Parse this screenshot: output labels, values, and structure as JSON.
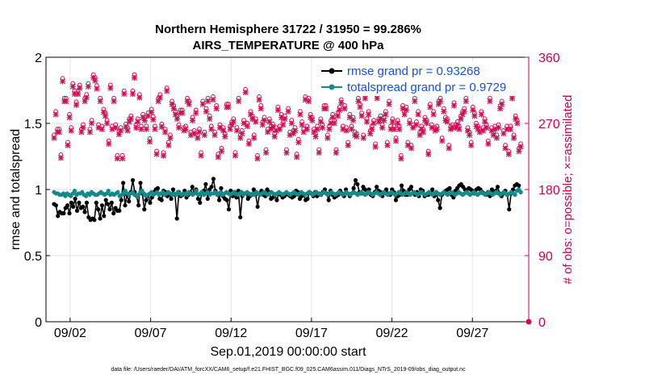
{
  "chart_data": {
    "type": "line",
    "title_line1": "Northern Hemisphere 31722 / 31950 = 99.286%",
    "title_line2": "AIRS_TEMPERATURE @ 400 hPa",
    "xlabel": "Sep.01,2019 00:00:00 start",
    "ylabel": "rmse and totalspread",
    "y2label": "# of obs: o=possible; ×=assimilated",
    "footnote": "data file: /Users/raeder/DAI/ATM_forcXX/CAM6_setup/f.e21.FHIST_BGC.f09_025.CAM6assim.011/Diags_NTrS_2019-09/obs_diag_output.nc",
    "xlim": [
      0.5,
      30.5
    ],
    "ylim": [
      0,
      2
    ],
    "y2lim": [
      0,
      360
    ],
    "xticks": [
      {
        "value": 2,
        "label": "09/02"
      },
      {
        "value": 7,
        "label": "09/07"
      },
      {
        "value": 12,
        "label": "09/12"
      },
      {
        "value": 17,
        "label": "09/17"
      },
      {
        "value": 22,
        "label": "09/22"
      },
      {
        "value": 27,
        "label": "09/27"
      }
    ],
    "yticks": [
      {
        "value": 0,
        "label": "0"
      },
      {
        "value": 0.5,
        "label": "0.5"
      },
      {
        "value": 1,
        "label": "1"
      },
      {
        "value": 1.5,
        "label": "1.5"
      },
      {
        "value": 2,
        "label": "2"
      }
    ],
    "y2ticks": [
      {
        "value": 0,
        "label": "0"
      },
      {
        "value": 90,
        "label": "90"
      },
      {
        "value": 180,
        "label": "180"
      },
      {
        "value": 270,
        "label": "270"
      },
      {
        "value": 360,
        "label": "360"
      }
    ],
    "grid": true,
    "legend_position": "top-right",
    "series": [
      {
        "name": "rmse grand pr = 0.93268",
        "color": "#000000",
        "axis": "left",
        "values": [
          0.89,
          0.88,
          0.8,
          0.83,
          0.82,
          0.82,
          0.86,
          0.88,
          0.82,
          0.9,
          0.87,
          0.93,
          0.84,
          0.9,
          0.86,
          0.87,
          0.83,
          0.9,
          0.79,
          0.77,
          0.78,
          0.77,
          0.9,
          0.85,
          0.78,
          0.88,
          0.8,
          0.92,
          0.89,
          0.85,
          0.9,
          0.82,
          0.86,
          0.84,
          0.84,
          0.92,
          1.05,
          0.88,
          0.96,
          0.91,
          0.98,
          1.07,
          0.98,
          0.95,
          0.88,
          1.05,
          0.97,
          0.85,
          0.92,
          0.96,
          0.9,
          0.94,
          0.98,
          1.0,
          1.01,
          0.93,
          0.92,
          0.99,
          0.98,
          0.95,
          0.97,
          0.93,
          1.0,
          0.96,
          0.78,
          0.98,
          0.95,
          0.96,
          0.99,
          0.94,
          0.96,
          0.98,
          1.02,
          0.97,
          1.0,
          0.93,
          0.9,
          0.98,
          0.99,
          1.04,
          0.93,
          1.0,
          1.02,
          1.08,
          0.99,
          0.97,
          0.92,
          1.01,
          0.95,
          0.93,
          0.92,
          0.85,
          0.99,
          0.95,
          0.98,
          0.94,
          0.99,
          0.79,
          0.95,
          0.97,
          0.97,
          0.93,
          0.95,
          0.96,
          1.0,
          0.96,
          0.87,
          0.97,
          0.99,
          0.96,
          0.95,
          1.0,
          0.98,
          0.93,
          0.94,
          0.96,
          0.92,
          0.97,
          0.96,
          0.94,
          0.95,
          0.97,
          0.96,
          0.95,
          0.94,
          0.95,
          0.99,
          0.98,
          0.93,
          0.95,
          0.96,
          0.92,
          0.93,
          0.98,
          0.97,
          0.95,
          0.98,
          0.95,
          0.97,
          0.96,
          0.98,
          1.0,
          0.97,
          0.92,
          0.99,
          0.96,
          0.94,
          0.95,
          0.96,
          0.99,
          0.97,
          0.95,
          1.0,
          0.97,
          0.95,
          0.97,
          1.01,
          1.07,
          1.04,
          0.98,
          0.97,
          1.02,
          1.0,
          0.97,
          1.0,
          0.96,
          0.95,
          0.98,
          1.02,
          0.99,
          0.98,
          0.95,
          0.98,
          1.0,
          0.97,
          0.96,
          1.0,
          0.98,
          0.92,
          0.95,
          0.96,
          1.03,
          0.99,
          0.96,
          0.96,
          1.0,
          1.02,
          0.97,
          0.96,
          0.98,
          0.95,
          1.0,
          0.99,
          0.95,
          0.96,
          0.96,
          0.97,
          1.0,
          0.95,
          0.98,
          0.92,
          0.86,
          0.96,
          0.98,
          0.99,
          1.0,
          1.01,
          0.96,
          0.94,
          0.99,
          1.01,
          1.03,
          1.04,
          1.02,
          1.0,
          0.98,
          1.01,
          1.0,
          0.99,
          0.97,
          1.0,
          1.01,
          1.0,
          0.98,
          0.97,
          0.96,
          0.98,
          0.95,
          1.0,
          0.97,
          0.99,
          1.02,
          0.97,
          0.95,
          0.97,
          0.99,
          0.96,
          0.85,
          0.97,
          1.0,
          1.03,
          1.04,
          1.03,
          0.98
        ]
      },
      {
        "name": "totalspread grand pr = 0.9729",
        "color": "#138a8a",
        "axis": "left",
        "values": [
          0.98,
          0.97,
          0.97,
          0.96,
          0.96,
          0.97,
          0.95,
          0.97,
          0.96,
          0.95,
          0.97,
          0.99,
          0.96,
          0.97,
          0.97,
          0.98,
          0.96,
          0.95,
          0.97,
          0.96,
          0.98,
          0.97,
          0.96,
          0.96,
          0.97,
          0.98,
          0.97,
          0.96,
          0.97,
          0.99,
          0.96,
          0.97,
          0.96,
          0.97,
          0.98,
          0.95,
          0.96,
          0.97,
          0.99,
          0.97,
          0.96,
          0.97,
          0.98,
          0.96,
          0.95,
          0.96,
          0.98,
          0.99,
          0.97,
          0.95,
          0.96,
          0.97,
          0.98,
          0.96,
          0.97,
          0.98,
          0.96,
          0.97,
          0.98,
          0.96,
          0.97,
          0.98,
          0.97,
          0.96,
          0.97,
          0.96,
          0.98,
          0.97,
          0.96,
          0.97,
          0.97,
          0.96,
          0.98,
          0.97,
          0.96,
          0.97,
          0.99,
          0.96,
          0.97,
          0.98,
          0.96,
          0.97,
          0.98,
          0.96,
          0.97,
          0.97,
          0.98,
          0.96,
          0.97,
          0.98,
          0.96,
          0.97,
          0.98,
          0.97,
          0.96,
          0.97,
          0.98,
          0.97,
          0.96,
          0.97,
          0.98,
          0.96,
          0.97,
          0.98,
          0.97,
          0.96,
          0.97,
          0.96,
          0.98,
          0.97,
          0.96,
          0.97,
          0.98,
          0.97,
          0.96,
          0.97,
          0.98,
          0.97,
          0.96,
          0.97,
          0.98,
          0.97,
          0.96,
          0.97,
          0.98,
          0.97,
          0.96,
          0.97,
          0.98,
          0.97,
          0.96,
          0.97,
          0.98,
          0.97,
          0.96,
          0.97,
          0.98,
          0.97,
          0.96,
          0.97,
          0.98,
          0.97,
          0.96,
          0.97,
          0.98,
          0.97,
          0.96,
          0.97,
          0.98,
          0.97,
          0.96,
          0.97,
          0.98,
          0.97,
          0.96,
          0.97,
          0.98,
          0.97,
          0.96,
          0.97,
          0.98,
          0.97,
          0.96,
          0.97,
          0.98,
          0.97,
          0.96,
          0.97,
          0.98,
          0.97,
          0.96,
          0.97,
          0.98,
          0.97,
          0.96,
          0.97,
          0.98,
          0.97,
          0.96,
          0.97,
          0.98,
          0.97,
          0.96,
          0.97,
          0.98,
          0.97,
          0.96,
          0.97,
          0.98,
          0.97,
          0.96,
          0.97,
          0.98,
          0.97,
          0.96,
          0.97,
          0.98,
          0.97,
          0.96,
          0.97,
          0.98,
          0.97,
          0.96,
          0.97,
          0.98,
          0.97,
          0.96,
          0.97,
          0.98,
          0.97,
          0.96,
          0.97,
          0.98,
          0.97,
          0.96,
          0.97,
          0.98,
          0.97,
          0.96,
          0.97,
          0.98,
          0.97,
          0.96,
          0.97,
          0.98,
          0.97,
          0.96,
          0.97,
          0.98,
          0.97,
          0.96,
          0.97,
          0.98,
          0.97,
          0.96,
          0.97,
          0.98,
          0.97,
          0.96,
          0.97,
          0.98,
          0.97,
          0.96,
          0.97,
          0.98,
          0.97,
          0.96,
          0.99,
          1.0,
          0.98
        ]
      }
    ],
    "obs_counts": {
      "color": "#cc1155",
      "axis": "right",
      "values": [
        250,
        282,
        258,
        258,
        223,
        327,
        300,
        300,
        240,
        278,
        260,
        320,
        310,
        295,
        310,
        318,
        258,
        264,
        300,
        305,
        320,
        258,
        270,
        332,
        328,
        317,
        264,
        300,
        262,
        285,
        280,
        270,
        242,
        318,
        262,
        300,
        264,
        222,
        255,
        260,
        222,
        310,
        265,
        260,
        272,
        276,
        310,
        332,
        264,
        272,
        305,
        262,
        278,
        274,
        262,
        280,
        245,
        285,
        275,
        262,
        228,
        300,
        305,
        265,
        226,
        258,
        314,
        240,
        250,
        296,
        290,
        282,
        276,
        264,
        284,
        284,
        260,
        262,
        300,
        296,
        254,
        274,
        256,
        284,
        250,
        258,
        226,
        296,
        254,
        286,
        300,
        276,
        262,
        302,
        254,
        290,
        224,
        264,
        232,
        260,
        252,
        292,
        292,
        262,
        268,
        272,
        226,
        260,
        300,
        250,
        256,
        270,
        312,
        266,
        242,
        282,
        276,
        250,
        272,
        222,
        302,
        290,
        268,
        274,
        230,
        258,
        272,
        262,
        265,
        252,
        260,
        288,
        262,
        278,
        268,
        276,
        230,
        286,
        254,
        270,
        256,
        260,
        224,
        244,
        282,
        268,
        258,
        302,
        262,
        300,
        278,
        274,
        258,
        252,
        262,
        230,
        272,
        264,
        290,
        290,
        250,
        262,
        270,
        278,
        270,
        230,
        280,
        288,
        298,
        262,
        290,
        260,
        240,
        278,
        262,
        274,
        254,
        252,
        300,
        292,
        280,
        250,
        304,
        272,
        282,
        256,
        262,
        270,
        238,
        304,
        272,
        276,
        264,
        274,
        282,
        240,
        296,
        262,
        272,
        262,
        246,
        270,
        262,
        222,
        290,
        282,
        288,
        240,
        270,
        236,
        264,
        300,
        268,
        282,
        254,
        262,
        258,
        274,
        270,
        228,
        292,
        264,
        282,
        260,
        262,
        296,
        300,
        246,
        286,
        274,
        272,
        236,
        262,
        264,
        294,
        264,
        268,
        262,
        276,
        282,
        286,
        300,
        260,
        254,
        240,
        288,
        280,
        266,
        262,
        258,
        282,
        260,
        272,
        264,
        242,
        300,
        260,
        254,
        262,
        250,
        264,
        290,
        296,
        256,
        236,
        262,
        228,
        262,
        304,
        250,
        276,
        270,
        232,
        238
      ]
    }
  }
}
